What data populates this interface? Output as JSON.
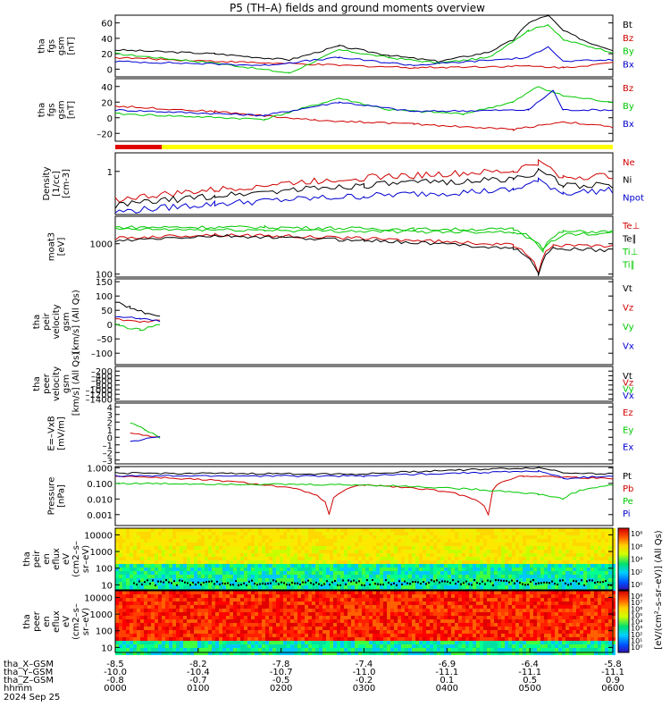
{
  "title": "P5 (TH–A) fields and ground moments overview",
  "chart_data": {
    "type": "line",
    "x_ticks": [
      "0000",
      "0100",
      "0200",
      "0300",
      "0400",
      "0500",
      "0600"
    ],
    "x_rows": [
      {
        "label": "tha_X–GSM",
        "values": [
          "-8.5",
          "-8.2",
          "-7.8",
          "-7.4",
          "-6.9",
          "-6.4",
          "-5.8"
        ]
      },
      {
        "label": "tha_Y–GSM",
        "values": [
          "-10.0",
          "-10.4",
          "-10.7",
          "-11.0",
          "-11.1",
          "-11.1",
          "-11.1"
        ]
      },
      {
        "label": "tha_Z–GSM",
        "values": [
          "-0.8",
          "-0.7",
          "-0.5",
          "-0.2",
          "0.1",
          "0.5",
          "0.9"
        ]
      },
      {
        "label": "hhmm",
        "values": []
      }
    ],
    "date_label": "2024 Sep 25",
    "colorbar_label": "[eV/(cm²–s–sr–eV)] (All Qs)",
    "panels": [
      {
        "id": "p1",
        "ylabel": [
          "tha",
          "fgs",
          "gsm",
          "[nT]"
        ],
        "ymin": -10,
        "ymax": 70,
        "ticks": [
          "60",
          "40",
          "20",
          "0"
        ],
        "tickvals": [
          60,
          40,
          20,
          0
        ],
        "legend": [
          {
            "name": "Bt",
            "color": "#000000"
          },
          {
            "name": "Bz",
            "color": "#d00000"
          },
          {
            "name": "By",
            "color": "#00c800"
          },
          {
            "name": "Bx",
            "color": "#0000d0"
          }
        ]
      },
      {
        "id": "p2",
        "ylabel": [
          "tha",
          "fgs",
          "gsm",
          "[nT]"
        ],
        "ymin": -30,
        "ymax": 50,
        "ticks": [
          "40",
          "20",
          "0",
          "–20"
        ],
        "tickvals": [
          40,
          20,
          0,
          -20
        ],
        "legend": [
          {
            "name": "Bz",
            "color": "#d00000"
          },
          {
            "name": "By",
            "color": "#00c800"
          },
          {
            "name": "Bx",
            "color": "#0000d0"
          }
        ]
      },
      {
        "id": "p3",
        "ylabel": [
          "Density",
          "[1/cc]",
          "[cm-3]"
        ],
        "log": true,
        "ymin": 0.2,
        "ymax": 2,
        "ticks": [
          "1"
        ],
        "tickvals": [
          1
        ],
        "legend": [
          {
            "name": "Ne",
            "color": "#d00000"
          },
          {
            "name": "Ni",
            "color": "#000000"
          },
          {
            "name": "Npot",
            "color": "#0000d0"
          }
        ]
      },
      {
        "id": "p4",
        "ylabel": [
          "moat3",
          "[eV]"
        ],
        "log": true,
        "ymin": 80,
        "ymax": 8000,
        "ticks": [
          "1000",
          "100"
        ],
        "tickvals": [
          1000,
          100
        ],
        "legend": [
          {
            "name": "Te⊥",
            "color": "#d00000"
          },
          {
            "name": "Te∥",
            "color": "#000000"
          },
          {
            "name": "Ti⊥",
            "color": "#00c800"
          },
          {
            "name": "Ti∥",
            "color": "#00c800"
          }
        ]
      },
      {
        "id": "p5",
        "ylabel": [
          "tha",
          "peir",
          "velocity",
          "gsm",
          "[km/s] (All Qs)"
        ],
        "ymin": -140,
        "ymax": 160,
        "ticks": [
          "150",
          "100",
          "50",
          "0",
          "–50",
          "–100"
        ],
        "tickvals": [
          150,
          100,
          50,
          0,
          -50,
          -100
        ],
        "legend": [
          {
            "name": "Vt",
            "color": "#000000"
          },
          {
            "name": "Vz",
            "color": "#d00000"
          },
          {
            "name": "Vy",
            "color": "#00c800"
          },
          {
            "name": "Vx",
            "color": "#0000d0"
          }
        ]
      },
      {
        "id": "p6",
        "ylabel": [
          "tha",
          "peer",
          "velocity",
          "gsm",
          "[km/s] (All Qs)"
        ],
        "ymin": -1500,
        "ymax": 0,
        "ticks": [
          "–200",
          "–400",
          "–600",
          "–800",
          "–1000",
          "–1200",
          "–1400"
        ],
        "tickvals": [
          -200,
          -400,
          -600,
          -800,
          -1000,
          -1200,
          -1400
        ],
        "legend": [
          {
            "name": "Vt",
            "color": "#000000"
          },
          {
            "name": "Vz",
            "color": "#d00000"
          },
          {
            "name": "Vy",
            "color": "#00c800"
          },
          {
            "name": "Vx",
            "color": "#0000d0"
          }
        ]
      },
      {
        "id": "p7",
        "ylabel": [
          "E=–VxB",
          "[mV/m]"
        ],
        "ymin": -3.5,
        "ymax": 4.5,
        "ticks": [
          "4",
          "3",
          "2",
          "1",
          "0",
          "–1",
          "–2",
          "–3"
        ],
        "tickvals": [
          4,
          3,
          2,
          1,
          0,
          -1,
          -2,
          -3
        ],
        "legend": [
          {
            "name": "Ez",
            "color": "#d00000"
          },
          {
            "name": "Ey",
            "color": "#00c800"
          },
          {
            "name": "Ex",
            "color": "#0000d0"
          }
        ]
      },
      {
        "id": "p8",
        "ylabel": [
          "Pressure",
          "[nPa]"
        ],
        "log": true,
        "ymin": 0.0002,
        "ymax": 1.2,
        "ticks": [
          "1.000",
          "0.100",
          "0.010",
          "0.001"
        ],
        "tickvals": [
          1,
          0.1,
          0.01,
          0.001
        ],
        "legend": [
          {
            "name": "Pt",
            "color": "#000000"
          },
          {
            "name": "Pb",
            "color": "#d00000"
          },
          {
            "name": "Pe",
            "color": "#00c800"
          },
          {
            "name": "Pi",
            "color": "#0000d0"
          }
        ]
      },
      {
        "id": "p9",
        "ylabel": [
          "tha",
          "peir",
          "en",
          "eflux",
          "eV",
          "(cm2–s–",
          "sr–eV)"
        ],
        "log": true,
        "ymin": 5,
        "ymax": 25000,
        "ticks": [
          "10000",
          "1000",
          "100",
          "10"
        ],
        "tickvals": [
          10000,
          1000,
          100,
          10
        ],
        "cbar_ticks": [
          "10⁸",
          "10⁶",
          "10⁴",
          "10²",
          "10⁰"
        ]
      },
      {
        "id": "p10",
        "ylabel": [
          "tha",
          "peer",
          "en",
          "eflux",
          "eV",
          "(cm2–s–",
          "sr–eV)"
        ],
        "log": true,
        "ymin": 5,
        "ymax": 25000,
        "ticks": [
          "10000",
          "1000",
          "100",
          "10"
        ],
        "tickvals": [
          10000,
          1000,
          100,
          10
        ],
        "cbar_ticks": [
          "10⁸",
          "10⁷",
          "10⁶",
          "10⁵",
          "10⁴",
          "10³",
          "10²",
          "10¹",
          "10⁰"
        ]
      }
    ],
    "series_approx": {
      "p1": {
        "Bt": [
          [
            0,
            25
          ],
          [
            0.2,
            20
          ],
          [
            0.35,
            12
          ],
          [
            0.45,
            30
          ],
          [
            0.55,
            18
          ],
          [
            0.65,
            10
          ],
          [
            0.75,
            22
          ],
          [
            0.8,
            38
          ],
          [
            0.83,
            60
          ],
          [
            0.87,
            70
          ],
          [
            0.9,
            50
          ],
          [
            0.95,
            35
          ],
          [
            1,
            25
          ]
        ],
        "Bz": [
          [
            0,
            15
          ],
          [
            0.3,
            8
          ],
          [
            0.6,
            2
          ],
          [
            0.83,
            4
          ],
          [
            0.9,
            2
          ],
          [
            1,
            8
          ]
        ],
        "By": [
          [
            0,
            20
          ],
          [
            0.2,
            8
          ],
          [
            0.35,
            -5
          ],
          [
            0.45,
            25
          ],
          [
            0.55,
            15
          ],
          [
            0.65,
            8
          ],
          [
            0.75,
            15
          ],
          [
            0.83,
            50
          ],
          [
            0.87,
            58
          ],
          [
            0.9,
            38
          ],
          [
            1,
            22
          ]
        ],
        "Bx": [
          [
            0,
            10
          ],
          [
            0.3,
            5
          ],
          [
            0.45,
            15
          ],
          [
            0.6,
            5
          ],
          [
            0.83,
            15
          ],
          [
            0.87,
            30
          ],
          [
            0.9,
            10
          ],
          [
            1,
            12
          ]
        ]
      },
      "p2": {
        "Bz": [
          [
            0,
            15
          ],
          [
            0.2,
            8
          ],
          [
            0.4,
            -3
          ],
          [
            0.6,
            -8
          ],
          [
            0.8,
            -15
          ],
          [
            0.9,
            -5
          ],
          [
            1,
            -12
          ]
        ],
        "By": [
          [
            0,
            5
          ],
          [
            0.3,
            -2
          ],
          [
            0.45,
            25
          ],
          [
            0.55,
            10
          ],
          [
            0.7,
            5
          ],
          [
            0.8,
            20
          ],
          [
            0.85,
            40
          ],
          [
            0.9,
            28
          ],
          [
            1,
            20
          ]
        ],
        "Bx": [
          [
            0,
            10
          ],
          [
            0.3,
            3
          ],
          [
            0.45,
            20
          ],
          [
            0.6,
            8
          ],
          [
            0.83,
            10
          ],
          [
            0.88,
            35
          ],
          [
            0.9,
            10
          ],
          [
            1,
            10
          ]
        ]
      },
      "p3": {
        "Ne": [
          [
            0,
            0.35
          ],
          [
            0.2,
            0.5
          ],
          [
            0.5,
            0.8
          ],
          [
            0.8,
            1.0
          ],
          [
            0.85,
            1.4
          ],
          [
            0.9,
            0.8
          ],
          [
            1,
            0.85
          ]
        ],
        "Ni": [
          [
            0,
            0.28
          ],
          [
            0.2,
            0.4
          ],
          [
            0.5,
            0.6
          ],
          [
            0.8,
            0.75
          ],
          [
            0.85,
            1.0
          ],
          [
            0.9,
            0.6
          ],
          [
            1,
            0.6
          ]
        ],
        "Npot": [
          [
            0,
            0.22
          ],
          [
            0.2,
            0.3
          ],
          [
            0.5,
            0.4
          ],
          [
            0.8,
            0.5
          ],
          [
            0.85,
            0.7
          ],
          [
            0.9,
            0.45
          ],
          [
            1,
            0.5
          ]
        ]
      },
      "p4": {
        "Te⊥": [
          [
            0,
            1500
          ],
          [
            0.2,
            2000
          ],
          [
            0.5,
            1500
          ],
          [
            0.8,
            900
          ],
          [
            0.85,
            120
          ],
          [
            0.88,
            900
          ],
          [
            1,
            800
          ]
        ],
        "Te∥": [
          [
            0,
            1200
          ],
          [
            0.2,
            1800
          ],
          [
            0.5,
            1300
          ],
          [
            0.8,
            700
          ],
          [
            0.85,
            100
          ],
          [
            0.88,
            700
          ],
          [
            1,
            600
          ]
        ],
        "Ti⊥": [
          [
            0,
            3500
          ],
          [
            0.3,
            3500
          ],
          [
            0.6,
            3000
          ],
          [
            0.8,
            3000
          ],
          [
            0.86,
            700
          ],
          [
            0.9,
            2500
          ],
          [
            1,
            2500
          ]
        ],
        "Ti∥": [
          [
            0,
            3000
          ],
          [
            0.3,
            2800
          ],
          [
            0.6,
            2500
          ],
          [
            0.8,
            2500
          ],
          [
            0.86,
            600
          ],
          [
            0.9,
            2000
          ],
          [
            1,
            2200
          ]
        ]
      },
      "p5": {
        "Vt": [
          [
            0,
            80
          ],
          [
            0.03,
            60
          ],
          [
            0.06,
            40
          ],
          [
            0.09,
            30
          ]
        ],
        "Vz": [
          [
            0,
            20
          ],
          [
            0.05,
            10
          ],
          [
            0.09,
            15
          ]
        ],
        "Vy": [
          [
            0,
            0
          ],
          [
            0.05,
            -20
          ],
          [
            0.09,
            0
          ]
        ],
        "Vx": [
          [
            0,
            30
          ],
          [
            0.05,
            20
          ],
          [
            0.09,
            10
          ]
        ]
      },
      "p7": {
        "Ez": [
          [
            0.03,
            0.5
          ],
          [
            0.09,
            0
          ]
        ],
        "Ey": [
          [
            0.03,
            2
          ],
          [
            0.06,
            1
          ],
          [
            0.09,
            0
          ]
        ],
        "Ex": [
          [
            0.03,
            -0.5
          ],
          [
            0.09,
            0
          ]
        ]
      },
      "p8": {
        "Pt": [
          [
            0,
            0.45
          ],
          [
            0.5,
            0.4
          ],
          [
            0.85,
            1.0
          ],
          [
            0.9,
            0.5
          ],
          [
            1,
            0.4
          ]
        ],
        "Pb": [
          [
            0,
            0.3
          ],
          [
            0.3,
            0.08
          ],
          [
            0.43,
            0.001
          ],
          [
            0.5,
            0.08
          ],
          [
            0.75,
            0.001
          ],
          [
            0.82,
            0.3
          ],
          [
            1,
            0.2
          ]
        ],
        "Pe": [
          [
            0,
            0.1
          ],
          [
            0.5,
            0.08
          ],
          [
            0.85,
            0.02
          ],
          [
            0.9,
            0.01
          ],
          [
            1,
            0.08
          ]
        ],
        "Pi": [
          [
            0,
            0.3
          ],
          [
            0.5,
            0.3
          ],
          [
            0.85,
            0.6
          ],
          [
            0.9,
            0.2
          ],
          [
            1,
            0.3
          ]
        ]
      }
    }
  }
}
